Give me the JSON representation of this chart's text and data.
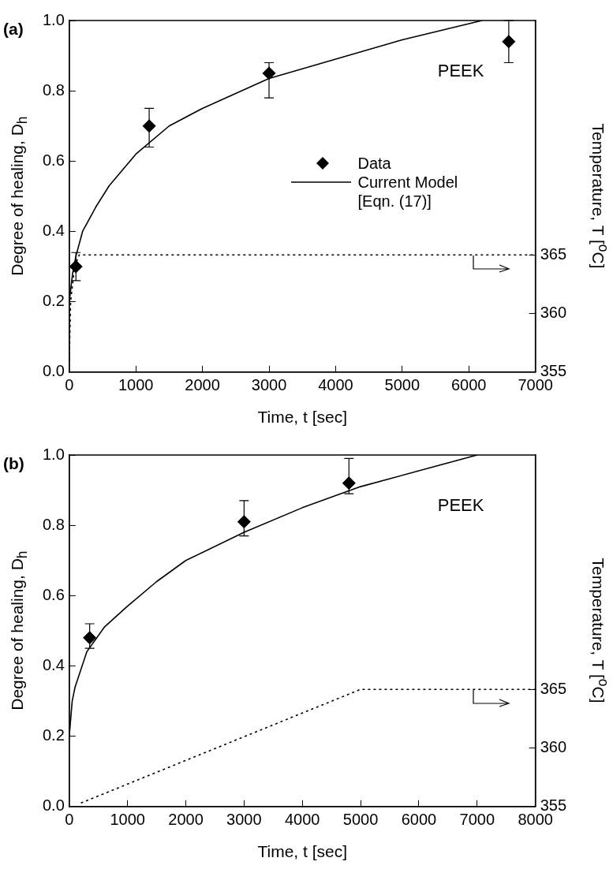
{
  "chart_data": [
    {
      "type": "line",
      "annotations": [
        "(a)",
        "PEEK"
      ],
      "xlabel": "Time, t [sec]",
      "ylabel": "Degree of healing, D$_{h}$",
      "y2label": "Temperature, T [$^{o}$C]",
      "xlim": [
        0,
        7000
      ],
      "xticks": [
        0,
        1000,
        2000,
        3000,
        4000,
        5000,
        6000,
        7000
      ],
      "ylim": [
        0,
        1
      ],
      "yticks": [
        {
          "value": 0,
          "label": "0.0"
        },
        {
          "value": 0.2,
          "label": "0.2"
        },
        {
          "value": 0.4,
          "label": "0.4"
        },
        {
          "value": 0.6,
          "label": "0.6"
        },
        {
          "value": 0.8,
          "label": "0.8"
        },
        {
          "value": 1,
          "label": "1.0"
        }
      ],
      "y2lim": [
        355,
        385
      ],
      "y2ticks": [
        355,
        360,
        365
      ],
      "grid": false,
      "legend": "right",
      "series": [
        {
          "name": "Data",
          "type": "scatter",
          "color": "#000000",
          "marker": "diamond",
          "x": [
            100,
            1200,
            3000,
            6600
          ],
          "values": [
            0.3,
            0.7,
            0.85,
            0.94
          ],
          "errors": [
            [
              0.26,
              0.34
            ],
            [
              0.64,
              0.75
            ],
            [
              0.78,
              0.88
            ],
            [
              0.88,
              1.0
            ]
          ]
        },
        {
          "name": "Current Model [Eqn. (17)]",
          "type": "line",
          "color": "#000000",
          "marker": "none",
          "line_style": "solid",
          "x": [
            0,
            50,
            100,
            200,
            400,
            600,
            1000,
            1500,
            2000,
            3000,
            4000,
            5000,
            6200
          ],
          "values": [
            0.2,
            0.28,
            0.33,
            0.4,
            0.47,
            0.53,
            0.62,
            0.7,
            0.75,
            0.835,
            0.89,
            0.945,
            1.0
          ]
        },
        {
          "type": "line",
          "axis": "y2",
          "color": "#000000",
          "marker": "none",
          "line_style": "dotted",
          "x": [
            0,
            20,
            80,
            150,
            7000
          ],
          "values": [
            356,
            361,
            364,
            365,
            365
          ]
        }
      ]
    },
    {
      "type": "line",
      "annotations": [
        "(b)",
        "PEEK"
      ],
      "xlabel": "Time, t [sec]",
      "ylabel": "Degree of healing, D$_{h}$",
      "y2label": "Temperature, T [$^{o}$C]",
      "xlim": [
        0,
        8000
      ],
      "xticks": [
        0,
        1000,
        2000,
        3000,
        4000,
        5000,
        6000,
        7000,
        8000
      ],
      "ylim": [
        0,
        1
      ],
      "yticks": [
        {
          "value": 0,
          "label": "0.0"
        },
        {
          "value": 0.2,
          "label": "0.2"
        },
        {
          "value": 0.4,
          "label": "0.4"
        },
        {
          "value": 0.6,
          "label": "0.6"
        },
        {
          "value": 0.8,
          "label": "0.8"
        },
        {
          "value": 1,
          "label": "1.0"
        }
      ],
      "y2lim": [
        355,
        385
      ],
      "y2ticks": [
        355,
        360,
        365
      ],
      "grid": false,
      "series": [
        {
          "type": "scatter",
          "color": "#000000",
          "marker": "diamond",
          "x": [
            350,
            3000,
            4800
          ],
          "values": [
            0.48,
            0.81,
            0.92
          ],
          "errors": [
            [
              0.45,
              0.52
            ],
            [
              0.77,
              0.87
            ],
            [
              0.89,
              0.99
            ]
          ]
        },
        {
          "type": "line",
          "color": "#000000",
          "marker": "none",
          "line_style": "solid",
          "x": [
            0,
            50,
            100,
            300,
            600,
            1000,
            1500,
            2000,
            3000,
            4000,
            5000,
            6000,
            7000
          ],
          "values": [
            0.2,
            0.3,
            0.34,
            0.44,
            0.51,
            0.57,
            0.64,
            0.7,
            0.78,
            0.85,
            0.91,
            0.955,
            1.0
          ]
        },
        {
          "type": "line",
          "axis": "y2",
          "color": "#000000",
          "marker": "none",
          "line_style": "dotted",
          "x": [
            200,
            5000,
            8000
          ],
          "values": [
            355.3,
            365,
            365
          ]
        }
      ]
    }
  ]
}
